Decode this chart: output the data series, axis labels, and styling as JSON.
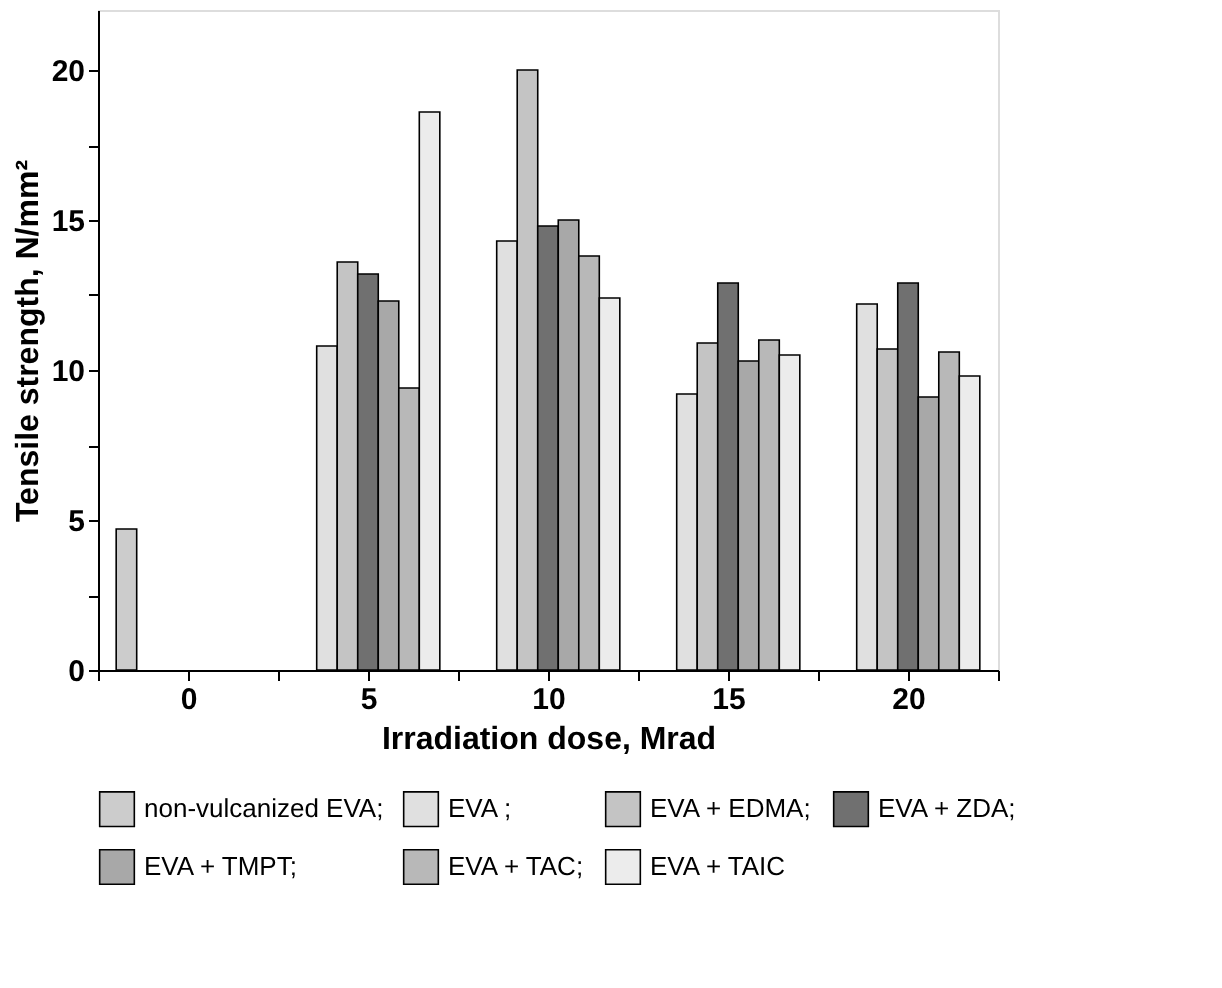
{
  "chart_data": {
    "type": "bar",
    "x": [
      0,
      5,
      10,
      15,
      20
    ],
    "xlabel": "Irradiation dose, Mrad",
    "ylabel": "Tensile strength, N/mm²",
    "xlim": [
      -2.5,
      22.5
    ],
    "xticks": [
      {
        "value": -2.5,
        "label": null
      },
      0,
      {
        "value": 2.5,
        "label": null
      },
      5,
      {
        "value": 7.5,
        "label": null
      },
      10,
      {
        "value": 12.5,
        "label": null
      },
      15,
      {
        "value": 17.5,
        "label": null
      },
      20,
      {
        "value": 22.5,
        "label": null
      }
    ],
    "ylim": [
      0,
      22
    ],
    "yticks": [
      0,
      {
        "value": 2.5,
        "label": null
      },
      5,
      {
        "value": 7.5,
        "label": null
      },
      10,
      {
        "value": 12.5,
        "label": null
      },
      15,
      {
        "value": 17.5,
        "label": null
      },
      20
    ],
    "grid": false,
    "legend": "bottom",
    "series": [
      {
        "name": "non-vulcanized EVA;",
        "color": "#cccccc",
        "values": [
          4.7,
          null,
          null,
          null,
          null
        ]
      },
      {
        "name": "EVA ;",
        "color": "#e0e0e0",
        "values": [
          null,
          10.8,
          14.3,
          9.2,
          12.2
        ]
      },
      {
        "name": "EVA + EDMA;",
        "color": "#c4c4c4",
        "values": [
          null,
          13.6,
          20.0,
          10.9,
          10.7
        ]
      },
      {
        "name": "EVA + ZDA;",
        "color": "#707070",
        "values": [
          null,
          13.2,
          14.8,
          12.9,
          12.9
        ]
      },
      {
        "name": "EVA + TMPT;",
        "color": "#a8a8a8",
        "values": [
          null,
          12.3,
          15.0,
          10.3,
          9.1
        ]
      },
      {
        "name": "EVA + TAC;",
        "color": "#b8b8b8",
        "values": [
          null,
          9.4,
          13.8,
          11.0,
          10.6
        ]
      },
      {
        "name": "EVA + TAIC",
        "color": "#ececec",
        "values": [
          null,
          18.6,
          12.4,
          10.5,
          9.8
        ]
      }
    ]
  }
}
